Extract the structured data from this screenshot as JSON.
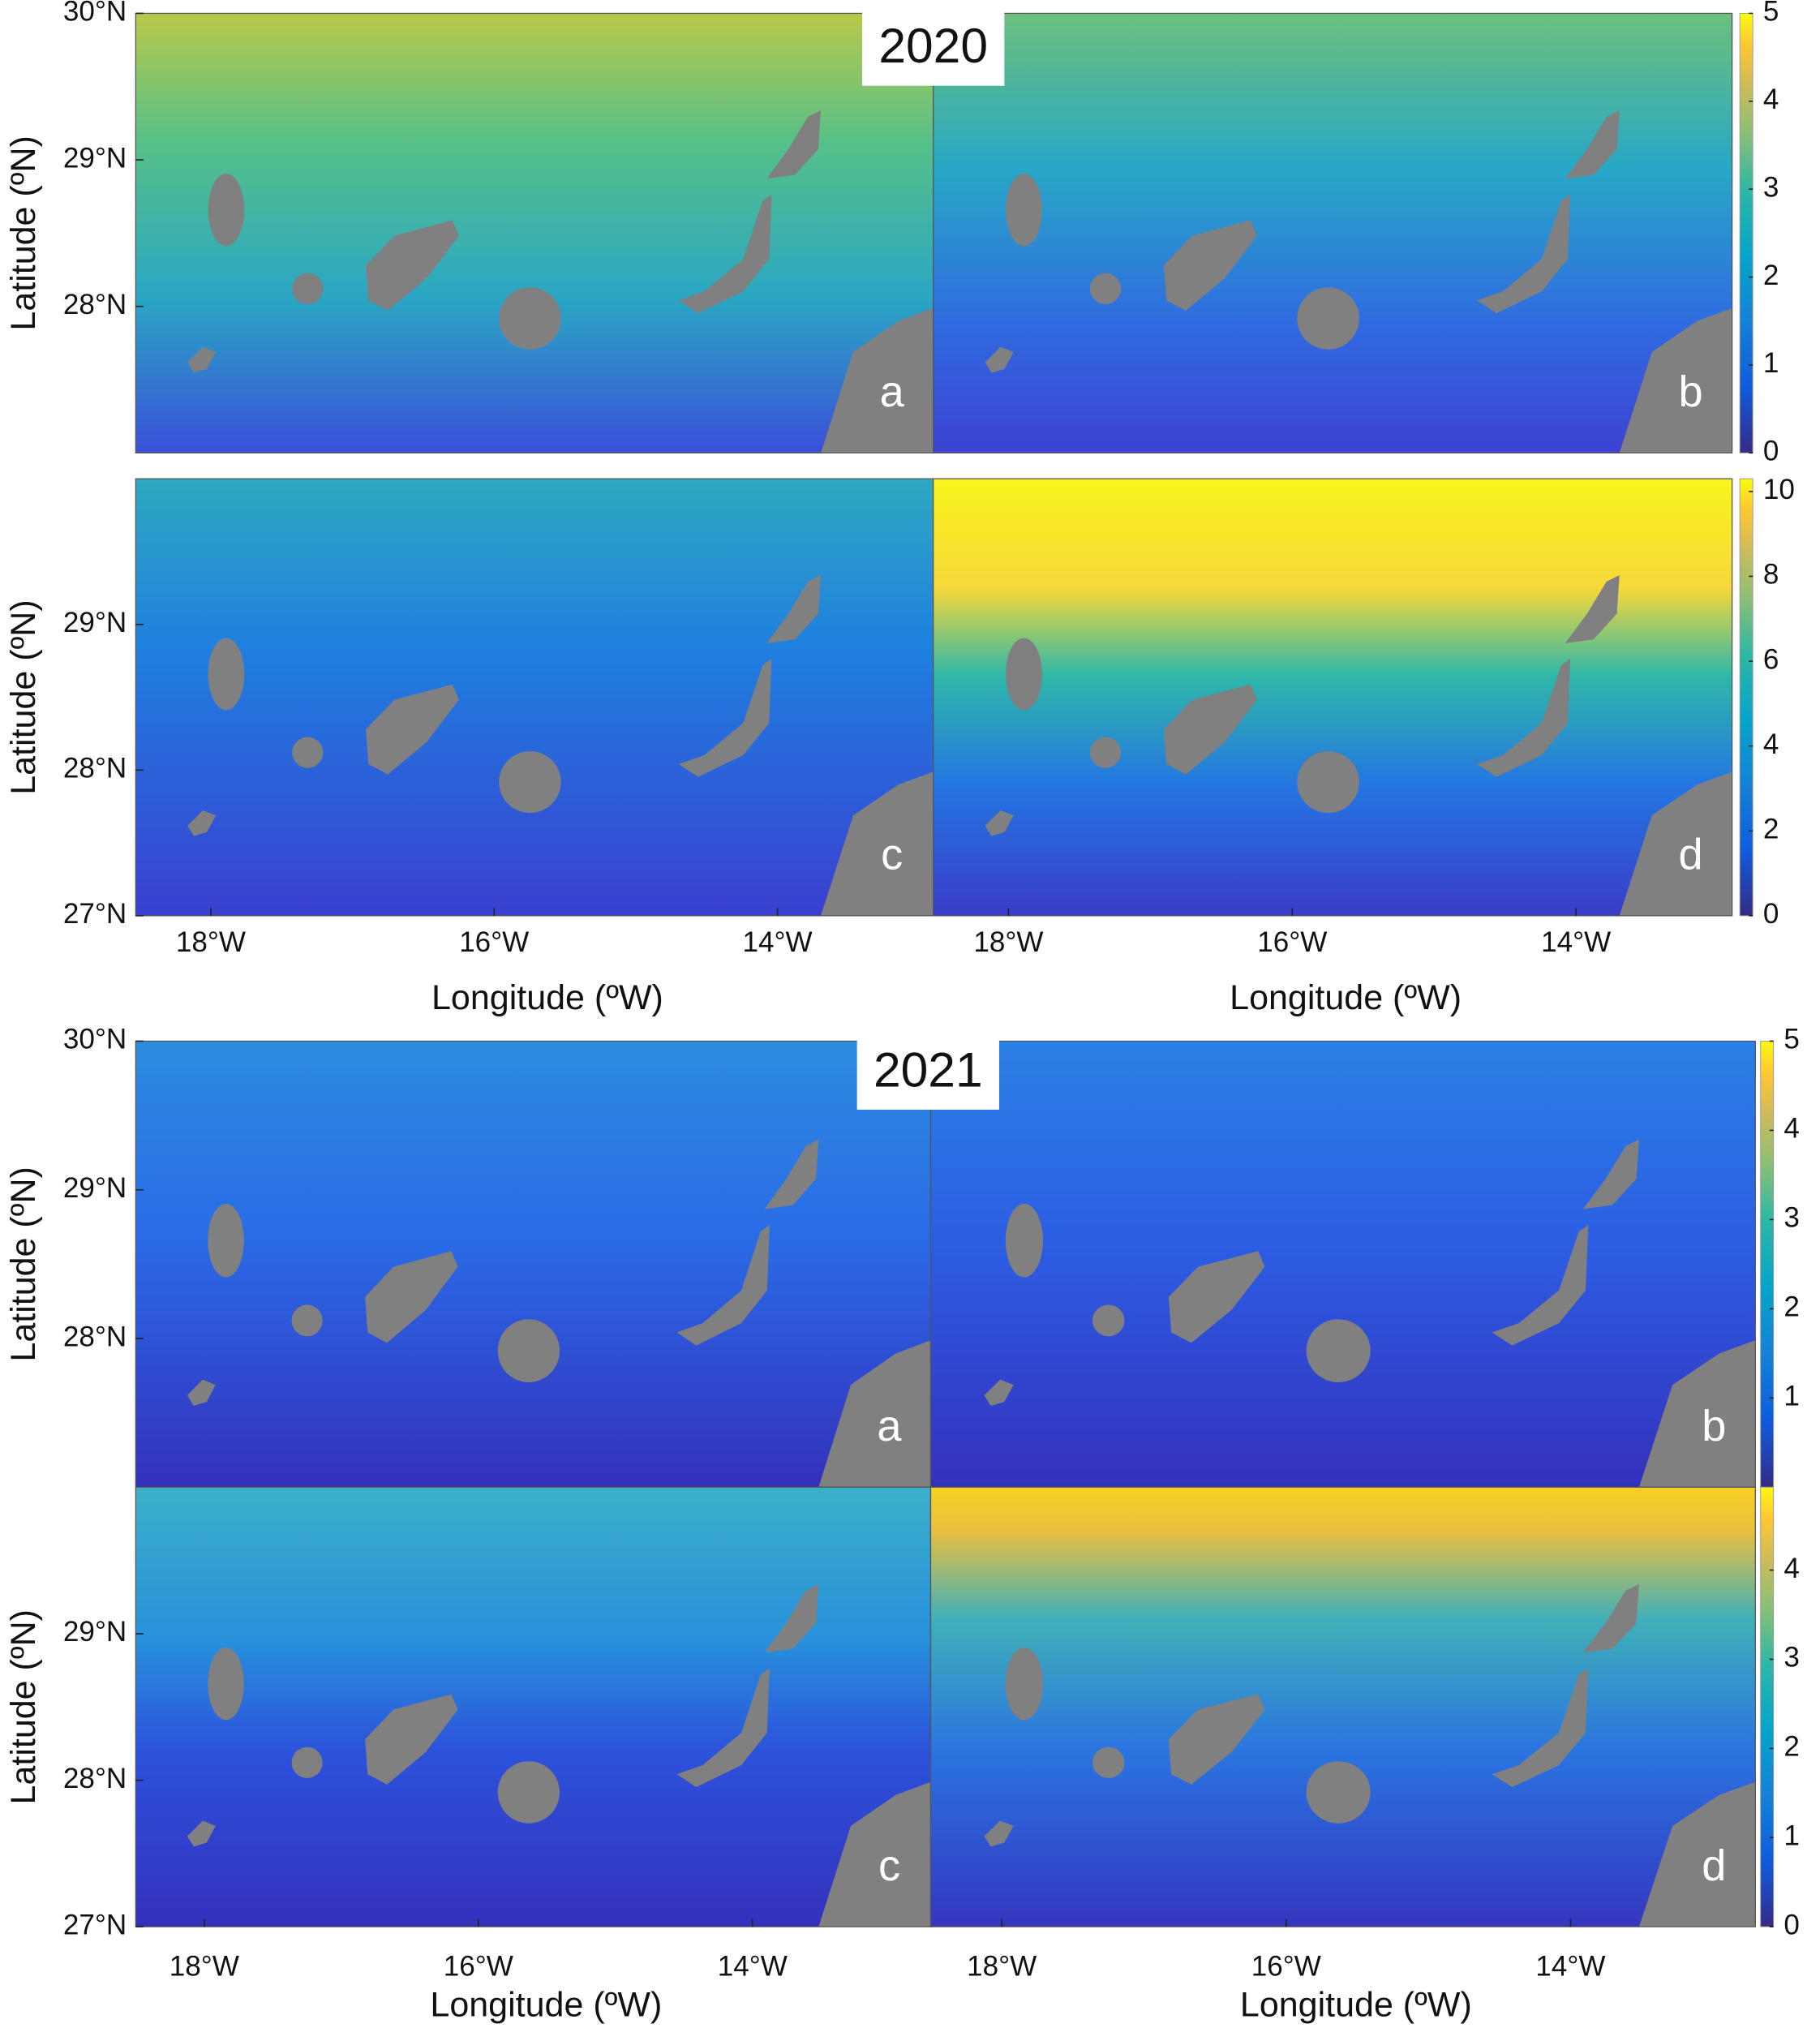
{
  "figures": [
    {
      "year": "2020",
      "x_label": "Longitude (ºW)",
      "y_label": "Latitude (ºN)",
      "lat_range": [
        27,
        30
      ],
      "lon_range": [
        -18.53,
        -12.9
      ],
      "lon_ticks": [
        {
          "value": -18,
          "label": "18°W"
        },
        {
          "value": -16,
          "label": "16°W"
        },
        {
          "value": -14,
          "label": "14°W"
        }
      ],
      "rows": [
        {
          "panels": [
            "a",
            "b"
          ],
          "lat_ticks": [
            {
              "value": 30,
              "label": "30°N"
            },
            {
              "value": 29,
              "label": "29°N"
            },
            {
              "value": 28,
              "label": "28°N"
            }
          ],
          "colorbar": {
            "range": [
              0,
              5
            ],
            "ticks": [
              0,
              1,
              2,
              3,
              4,
              5
            ]
          }
        },
        {
          "panels": [
            "c",
            "d"
          ],
          "lat_ticks": [
            {
              "value": 29,
              "label": "29°N"
            },
            {
              "value": 28,
              "label": "28°N"
            },
            {
              "value": 27,
              "label": "27°N"
            }
          ],
          "colorbar": {
            "range": [
              0,
              10.3
            ],
            "ticks": [
              0,
              2,
              4,
              6,
              8,
              10
            ]
          }
        }
      ]
    },
    {
      "year": "2021",
      "x_label": "Longitude (ºW)",
      "y_label": "Latitude (ºN)",
      "lat_range": [
        27,
        30
      ],
      "lon_range": [
        -18.5,
        -12.7
      ],
      "lon_ticks": [
        {
          "value": -18,
          "label": "18°W"
        },
        {
          "value": -16,
          "label": "16°W"
        },
        {
          "value": -14,
          "label": "14°W"
        }
      ],
      "rows": [
        {
          "panels": [
            "a",
            "b"
          ],
          "lat_ticks": [
            {
              "value": 30,
              "label": "30°N"
            },
            {
              "value": 29,
              "label": "29°N"
            },
            {
              "value": 28,
              "label": "28°N"
            }
          ],
          "colorbar": {
            "range": [
              0,
              5
            ],
            "ticks": [
              1,
              2,
              3,
              4,
              5
            ]
          }
        },
        {
          "panels": [
            "c",
            "d"
          ],
          "lat_ticks": [
            {
              "value": 29,
              "label": "29°N"
            },
            {
              "value": 28,
              "label": "28°N"
            },
            {
              "value": 27,
              "label": "27°N"
            }
          ],
          "colorbar": {
            "range": [
              0,
              4.93
            ],
            "ticks": [
              0,
              1,
              2,
              3,
              4
            ]
          }
        }
      ]
    }
  ]
}
